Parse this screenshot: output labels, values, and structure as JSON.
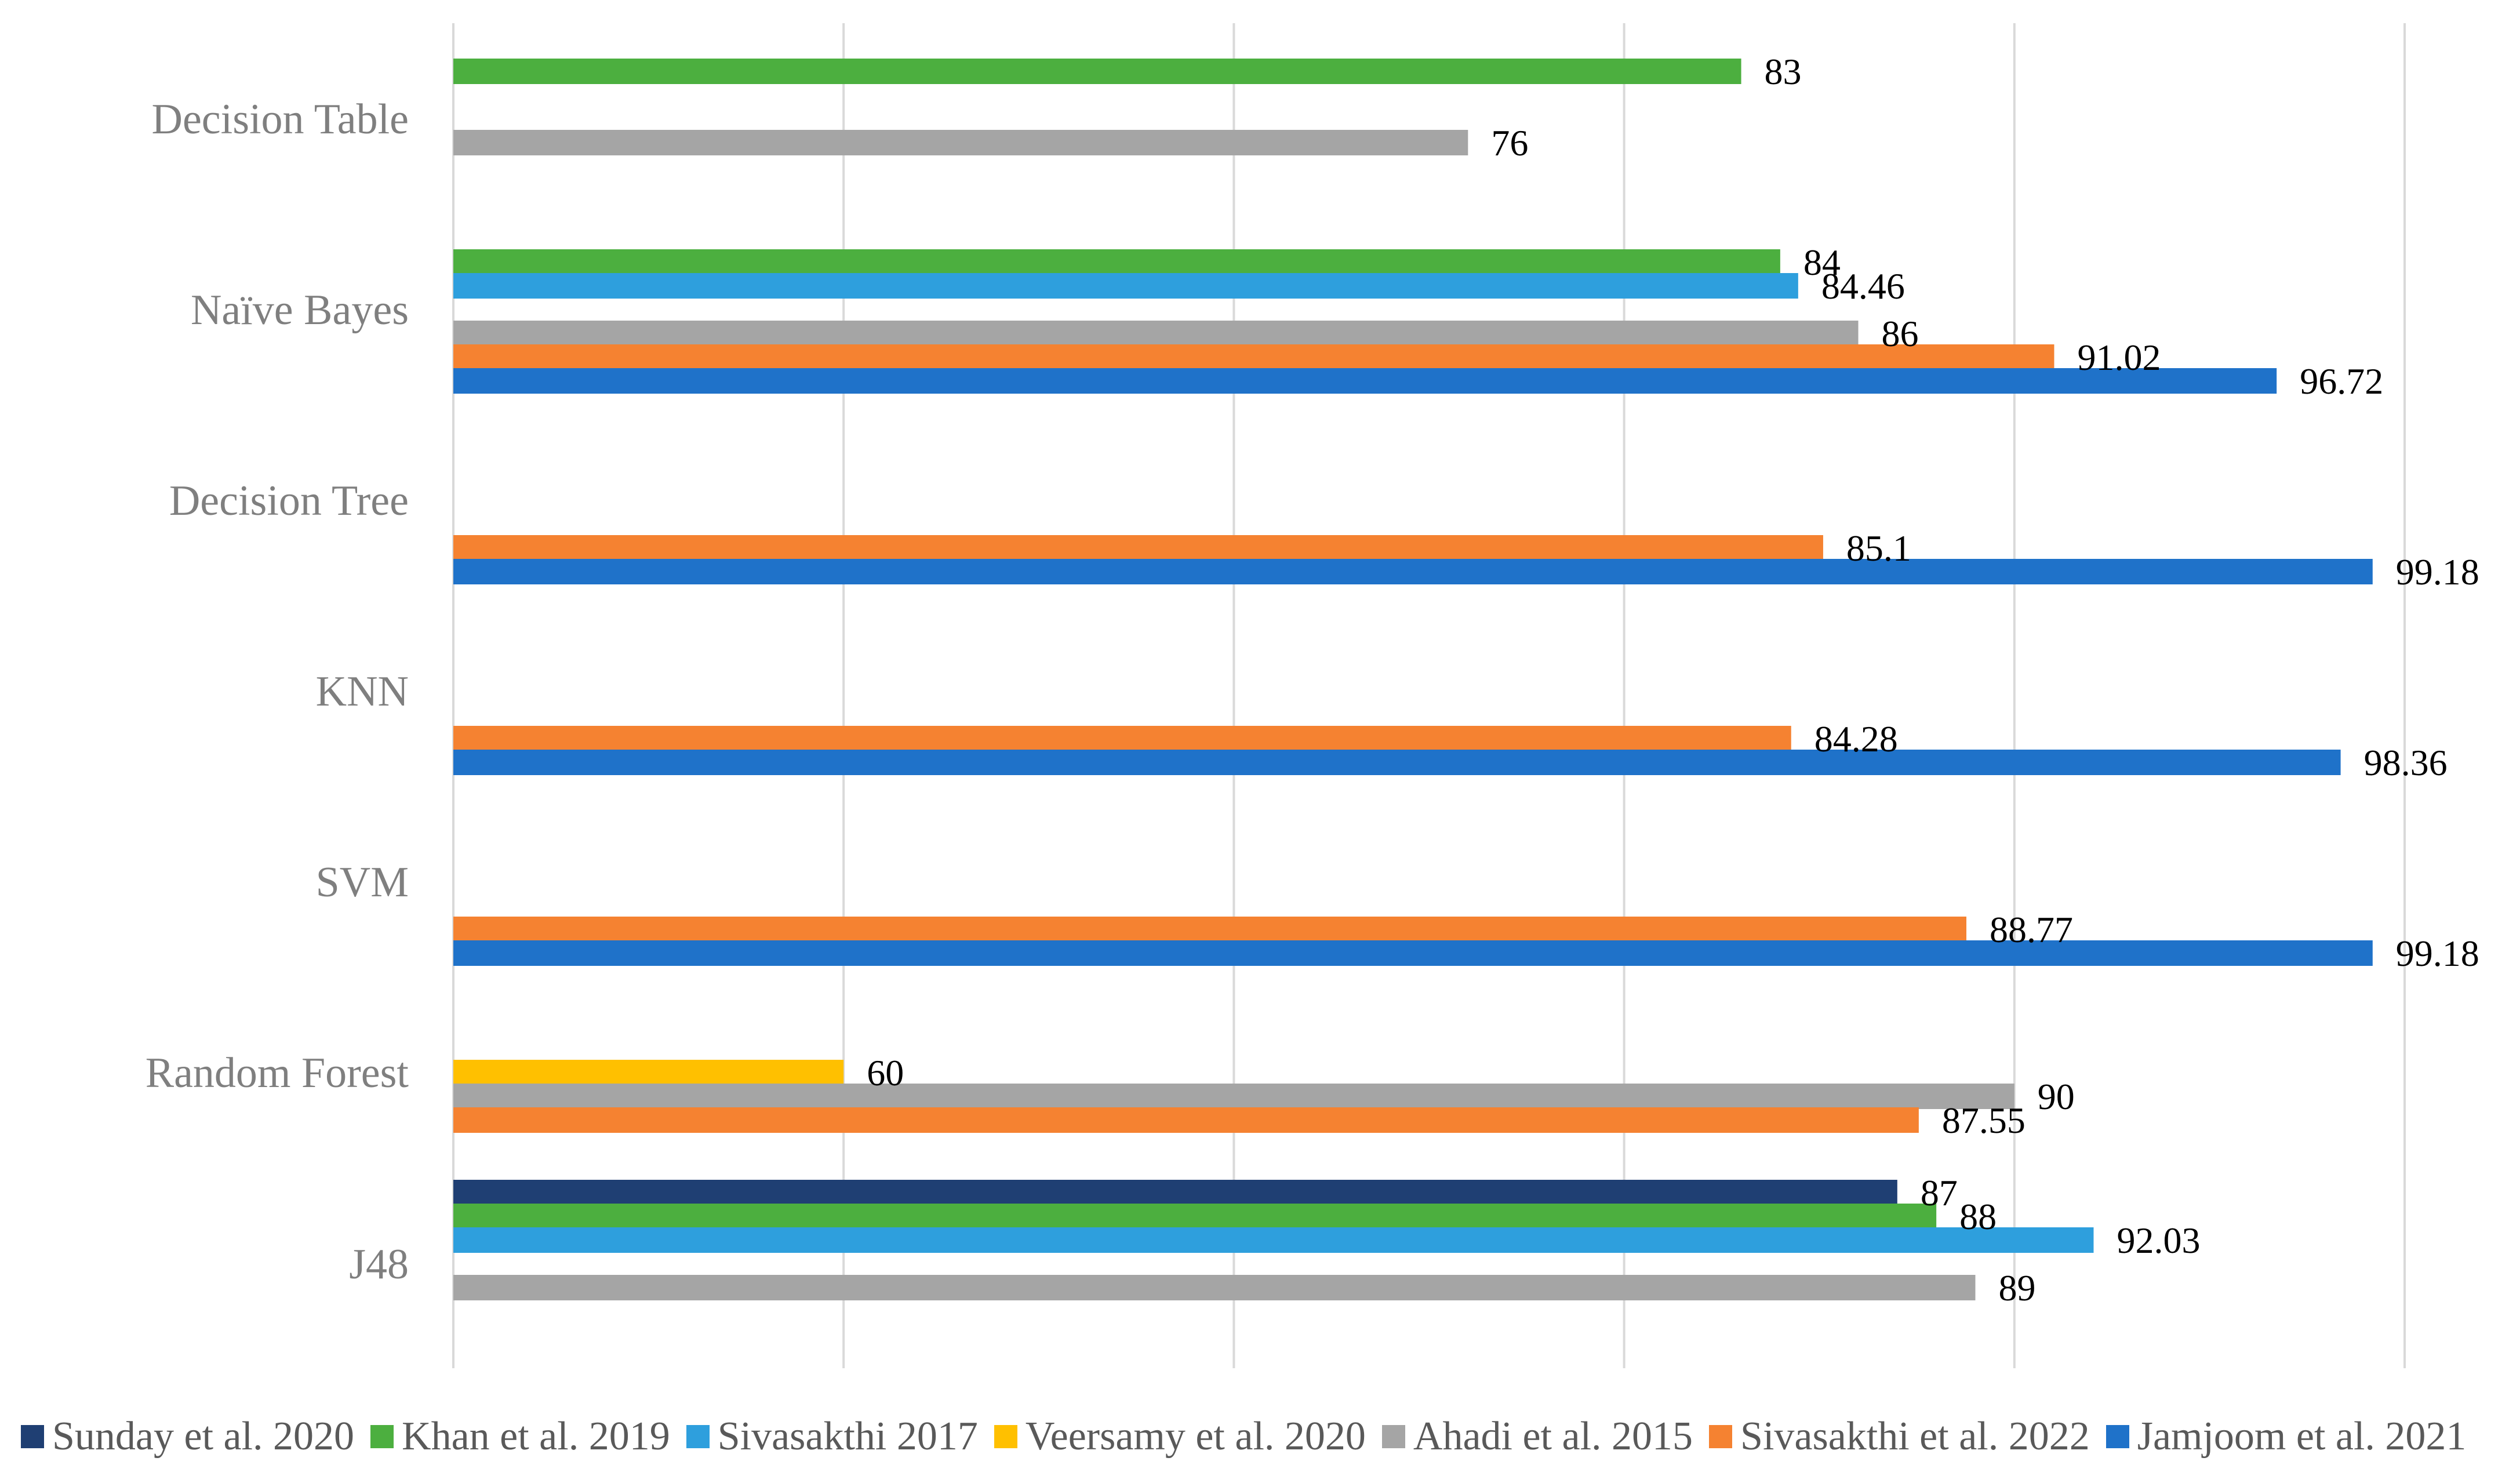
{
  "chart_data": {
    "type": "bar",
    "orientation": "horizontal",
    "title": "",
    "xlabel": "",
    "ylabel": "",
    "xlim": [
      50,
      100
    ],
    "grid": true,
    "legend_position": "bottom",
    "categories": [
      "Decision Table",
      "Naïve Bayes",
      "Decision Tree",
      "KNN",
      "SVM",
      "Random Forest",
      "J48"
    ],
    "series": [
      {
        "name": "Sunday et al. 2020",
        "color": "#1F3F73",
        "values": [
          null,
          null,
          null,
          null,
          null,
          null,
          87
        ]
      },
      {
        "name": "Khan et al. 2019",
        "color": "#4CAF3F",
        "values": [
          83,
          84,
          null,
          null,
          null,
          null,
          88
        ]
      },
      {
        "name": "Sivasakthi 2017",
        "color": "#2E9FDD",
        "values": [
          null,
          84.46,
          null,
          null,
          null,
          null,
          92.03
        ]
      },
      {
        "name": "Veersamy et al. 2020",
        "color": "#FFC000",
        "values": [
          null,
          null,
          null,
          null,
          null,
          60,
          null
        ]
      },
      {
        "name": "Ahadi et al. 2015",
        "color": "#A5A5A5",
        "values": [
          76,
          86,
          null,
          null,
          null,
          90,
          89
        ]
      },
      {
        "name": "Sivasakthi et al. 2022",
        "color": "#F58231",
        "values": [
          null,
          91.02,
          85.1,
          84.28,
          88.77,
          87.55,
          null
        ]
      },
      {
        "name": "Jamjoom et al. 2021",
        "color": "#1F72C9",
        "values": [
          null,
          96.72,
          99.18,
          98.36,
          99.18,
          null,
          null
        ]
      }
    ],
    "value_labels": [
      {
        "category": "Decision Table",
        "series": "Khan et al. 2019",
        "text": "83"
      },
      {
        "category": "Decision Table",
        "series": "Ahadi et al. 2015",
        "text": "76"
      },
      {
        "category": "Naïve Bayes",
        "series": "Khan et al. 2019",
        "text": "84"
      },
      {
        "category": "Naïve Bayes",
        "series": "Sivasakthi 2017",
        "text": "84.46"
      },
      {
        "category": "Naïve Bayes",
        "series": "Ahadi et al. 2015",
        "text": "86"
      },
      {
        "category": "Naïve Bayes",
        "series": "Sivasakthi et al. 2022",
        "text": "91.02"
      },
      {
        "category": "Naïve Bayes",
        "series": "Jamjoom et al. 2021",
        "text": "96.72"
      },
      {
        "category": "Decision Tree",
        "series": "Sivasakthi et al. 2022",
        "text": "85.1"
      },
      {
        "category": "Decision Tree",
        "series": "Jamjoom et al. 2021",
        "text": "99.18"
      },
      {
        "category": "KNN",
        "series": "Sivasakthi et al. 2022",
        "text": "84.28"
      },
      {
        "category": "KNN",
        "series": "Jamjoom et al. 2021",
        "text": "98.36"
      },
      {
        "category": "SVM",
        "series": "Sivasakthi et al. 2022",
        "text": "88.77"
      },
      {
        "category": "SVM",
        "series": "Jamjoom et al. 2021",
        "text": "99.18"
      },
      {
        "category": "Random Forest",
        "series": "Veersamy et al. 2020",
        "text": "60"
      },
      {
        "category": "Random Forest",
        "series": "Ahadi et al. 2015",
        "text": "90"
      },
      {
        "category": "Random Forest",
        "series": "Sivasakthi et al. 2022",
        "text": "87.55"
      },
      {
        "category": "J48",
        "series": "Sunday et al. 2020",
        "text": "87"
      },
      {
        "category": "J48",
        "series": "Khan et al. 2019",
        "text": "88"
      },
      {
        "category": "J48",
        "series": "Sivasakthi 2017",
        "text": "92.03"
      },
      {
        "category": "J48",
        "series": "Ahadi et al. 2015",
        "text": "89"
      }
    ]
  }
}
